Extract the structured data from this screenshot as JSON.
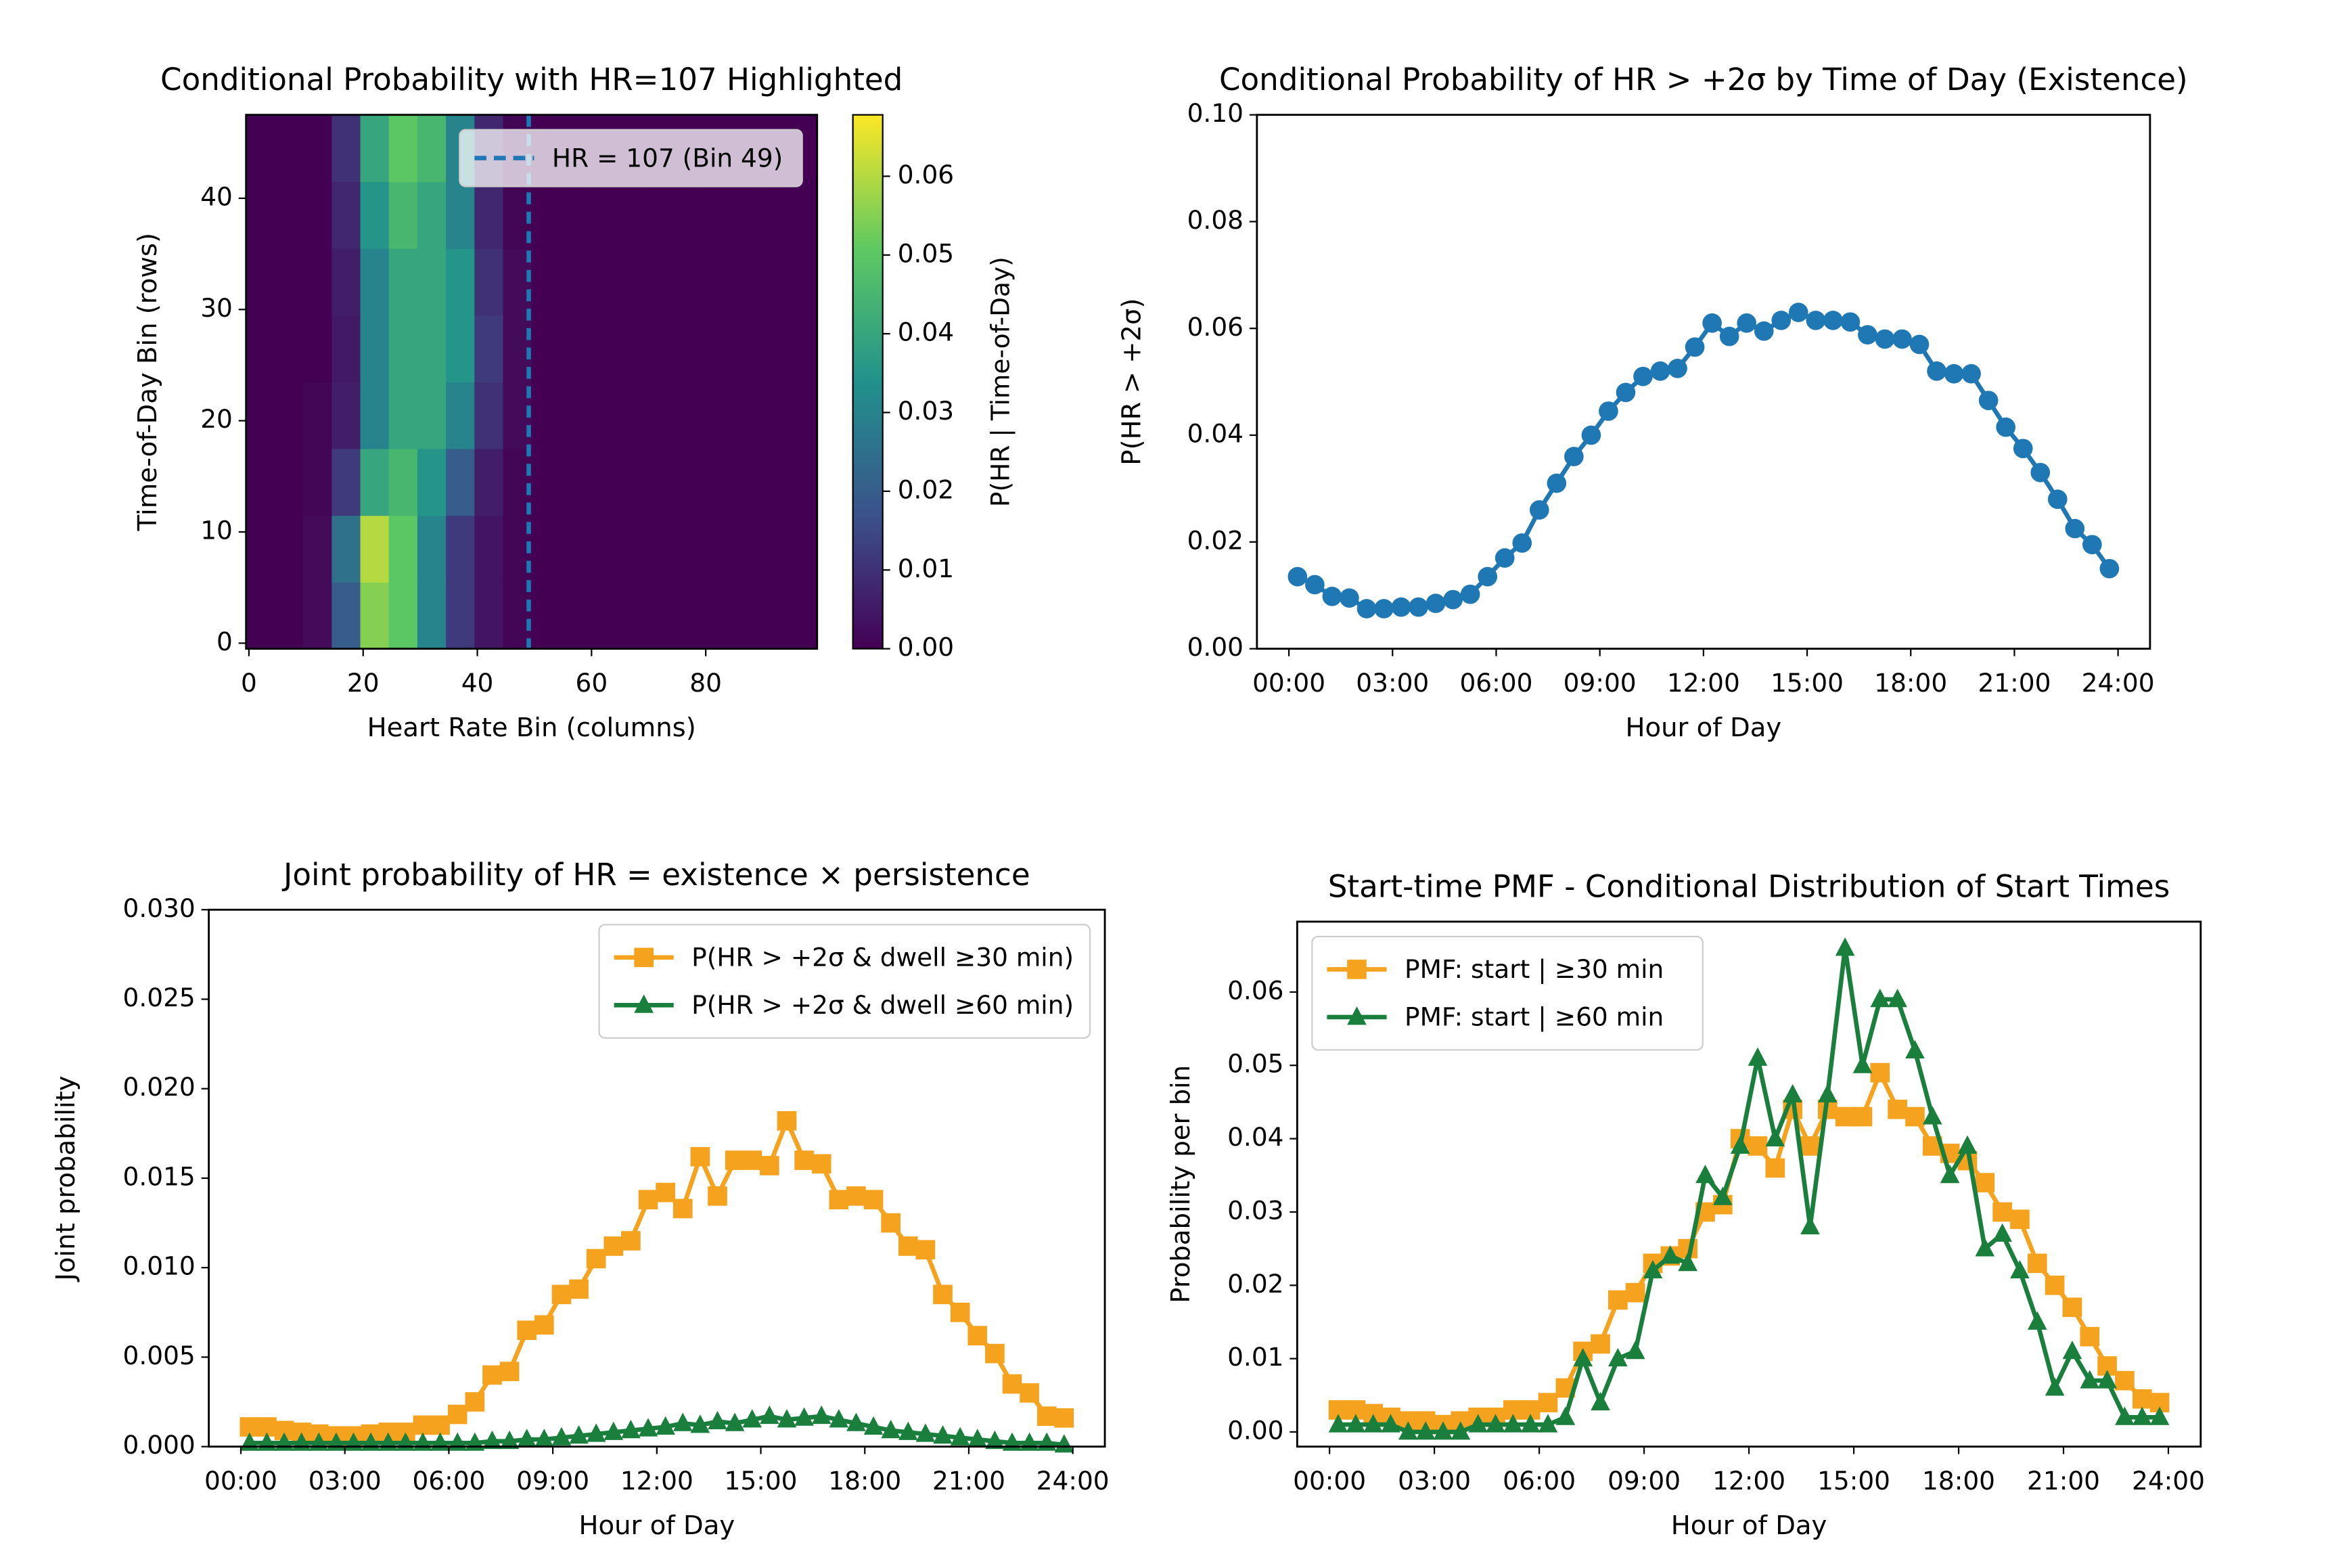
{
  "chart_data": [
    {
      "type": "heatmap",
      "title": "Conditional Probability with HR=107 Highlighted",
      "xlabel": "Heart Rate Bin (columns)",
      "ylabel": "Time-of-Day Bin (rows)",
      "xlim": [
        -0.5,
        99.5
      ],
      "ylim": [
        -0.5,
        47.5
      ],
      "xticks": [
        0,
        20,
        40,
        60,
        80
      ],
      "yticks": [
        0,
        10,
        20,
        30,
        40
      ],
      "colormap": "viridis",
      "clim": [
        0,
        0.0678
      ],
      "colorbar_label": "P(HR | Time-of-Day)",
      "cticks": [
        {
          "value": 0,
          "label": "0.00"
        },
        {
          "value": 0.01,
          "label": "0.01"
        },
        {
          "value": 0.02,
          "label": "0.02"
        },
        {
          "value": 0.03,
          "label": "0.03"
        },
        {
          "value": 0.04,
          "label": "0.04"
        },
        {
          "value": 0.05,
          "label": "0.05"
        },
        {
          "value": 0.06,
          "label": "0.06"
        }
      ],
      "vline": {
        "x": 49,
        "label": "HR = 107 (Bin 49)",
        "color": "#1f77b4"
      },
      "legend": "upper right",
      "z": [
        [
          0,
          0,
          0.002,
          0.02,
          0.055,
          0.05,
          0.03,
          0.012,
          0.004,
          0.001,
          0,
          0,
          0,
          0,
          0,
          0,
          0,
          0,
          0,
          0
        ],
        [
          0,
          0,
          0.002,
          0.025,
          0.06,
          0.05,
          0.03,
          0.012,
          0.004,
          0.001,
          0,
          0,
          0,
          0,
          0,
          0,
          0,
          0,
          0,
          0
        ],
        [
          0,
          0,
          0.001,
          0.012,
          0.04,
          0.045,
          0.035,
          0.02,
          0.006,
          0.001,
          0,
          0,
          0,
          0,
          0,
          0,
          0,
          0,
          0,
          0
        ],
        [
          0,
          0,
          0.001,
          0.006,
          0.03,
          0.04,
          0.04,
          0.03,
          0.01,
          0.002,
          0,
          0,
          0,
          0,
          0,
          0,
          0,
          0,
          0,
          0
        ],
        [
          0,
          0,
          0,
          0.005,
          0.03,
          0.04,
          0.04,
          0.035,
          0.012,
          0.002,
          0,
          0,
          0,
          0,
          0,
          0,
          0,
          0,
          0,
          0
        ],
        [
          0,
          0,
          0,
          0.006,
          0.03,
          0.04,
          0.04,
          0.035,
          0.01,
          0.002,
          0,
          0,
          0,
          0,
          0,
          0,
          0,
          0,
          0,
          0
        ],
        [
          0,
          0,
          0,
          0.008,
          0.035,
          0.045,
          0.04,
          0.03,
          0.008,
          0.001,
          0,
          0,
          0,
          0,
          0,
          0,
          0,
          0,
          0,
          0
        ],
        [
          0,
          0,
          0,
          0.01,
          0.04,
          0.05,
          0.045,
          0.03,
          0.008,
          0.001,
          0,
          0,
          0,
          0,
          0,
          0,
          0,
          0,
          0,
          0
        ]
      ]
    },
    {
      "type": "line",
      "title": "Conditional Probability of HR > +2σ by Time of Day (Existence)",
      "xlabel": "Hour of Day",
      "ylabel": "P(HR > +2σ)",
      "xlim": [
        -0.925,
        24.925
      ],
      "ylim": [
        0,
        0.1
      ],
      "xticks": [
        {
          "value": 0,
          "label": "00:00"
        },
        {
          "value": 3,
          "label": "03:00"
        },
        {
          "value": 6,
          "label": "06:00"
        },
        {
          "value": 9,
          "label": "09:00"
        },
        {
          "value": 12,
          "label": "12:00"
        },
        {
          "value": 15,
          "label": "15:00"
        },
        {
          "value": 18,
          "label": "18:00"
        },
        {
          "value": 21,
          "label": "21:00"
        },
        {
          "value": 24,
          "label": "24:00"
        }
      ],
      "yticks": [
        {
          "value": 0,
          "label": "0.00"
        },
        {
          "value": 0.02,
          "label": "0.02"
        },
        {
          "value": 0.04,
          "label": "0.04"
        },
        {
          "value": 0.06,
          "label": "0.06"
        },
        {
          "value": 0.08,
          "label": "0.08"
        },
        {
          "value": 0.1,
          "label": "0.10"
        }
      ],
      "x": [
        0.25,
        0.75,
        1.25,
        1.75,
        2.25,
        2.75,
        3.25,
        3.75,
        4.25,
        4.75,
        5.25,
        5.75,
        6.25,
        6.75,
        7.25,
        7.75,
        8.25,
        8.75,
        9.25,
        9.75,
        10.25,
        10.75,
        11.25,
        11.75,
        12.25,
        12.75,
        13.25,
        13.75,
        14.25,
        14.75,
        15.25,
        15.75,
        16.25,
        16.75,
        17.25,
        17.75,
        18.25,
        18.75,
        19.25,
        19.75,
        20.25,
        20.75,
        21.25,
        21.75,
        22.25,
        22.75,
        23.25,
        23.75
      ],
      "series": [
        {
          "color": "#1f77b4",
          "marker": "o",
          "values": [
            0.0135,
            0.012,
            0.0098,
            0.0095,
            0.0075,
            0.0075,
            0.0078,
            0.0078,
            0.0085,
            0.0092,
            0.0102,
            0.0135,
            0.017,
            0.0198,
            0.026,
            0.031,
            0.036,
            0.04,
            0.0445,
            0.048,
            0.051,
            0.052,
            0.0525,
            0.0565,
            0.061,
            0.0585,
            0.061,
            0.0595,
            0.0615,
            0.063,
            0.0615,
            0.0615,
            0.0612,
            0.0588,
            0.058,
            0.058,
            0.057,
            0.052,
            0.0515,
            0.0515,
            0.0465,
            0.0415,
            0.0375,
            0.033,
            0.028,
            0.0225,
            0.0195,
            0.015
          ]
        }
      ]
    },
    {
      "type": "line",
      "title": "Joint probability of HR = existence × persistence",
      "xlabel": "Hour of Day",
      "ylabel": "Joint probability",
      "legend": "upper right",
      "xlim": [
        -0.925,
        24.925
      ],
      "ylim": [
        0,
        0.03
      ],
      "xticks": [
        {
          "value": 0,
          "label": "00:00"
        },
        {
          "value": 3,
          "label": "03:00"
        },
        {
          "value": 6,
          "label": "06:00"
        },
        {
          "value": 9,
          "label": "09:00"
        },
        {
          "value": 12,
          "label": "12:00"
        },
        {
          "value": 15,
          "label": "15:00"
        },
        {
          "value": 18,
          "label": "18:00"
        },
        {
          "value": 21,
          "label": "21:00"
        },
        {
          "value": 24,
          "label": "24:00"
        }
      ],
      "yticks": [
        {
          "value": 0,
          "label": "0.000"
        },
        {
          "value": 0.005,
          "label": "0.005"
        },
        {
          "value": 0.01,
          "label": "0.010"
        },
        {
          "value": 0.015,
          "label": "0.015"
        },
        {
          "value": 0.02,
          "label": "0.020"
        },
        {
          "value": 0.025,
          "label": "0.025"
        },
        {
          "value": 0.03,
          "label": "0.030"
        }
      ],
      "x": [
        0.25,
        0.75,
        1.25,
        1.75,
        2.25,
        2.75,
        3.25,
        3.75,
        4.25,
        4.75,
        5.25,
        5.75,
        6.25,
        6.75,
        7.25,
        7.75,
        8.25,
        8.75,
        9.25,
        9.75,
        10.25,
        10.75,
        11.25,
        11.75,
        12.25,
        12.75,
        13.25,
        13.75,
        14.25,
        14.75,
        15.25,
        15.75,
        16.25,
        16.75,
        17.25,
        17.75,
        18.25,
        18.75,
        19.25,
        19.75,
        20.25,
        20.75,
        21.25,
        21.75,
        22.25,
        22.75,
        23.25,
        23.75
      ],
      "series": [
        {
          "name": "P(HR > +2σ & dwell ≥30 min)",
          "color": "#f5a31f",
          "marker": "s",
          "values": [
            0.0011,
            0.0011,
            0.0009,
            0.0008,
            0.0007,
            0.0006,
            0.0006,
            0.0007,
            0.0008,
            0.0008,
            0.0012,
            0.0012,
            0.0018,
            0.0025,
            0.004,
            0.0042,
            0.0065,
            0.0068,
            0.0085,
            0.0088,
            0.0105,
            0.0112,
            0.0115,
            0.0138,
            0.0142,
            0.0133,
            0.0162,
            0.014,
            0.016,
            0.016,
            0.0157,
            0.0182,
            0.016,
            0.0158,
            0.0138,
            0.014,
            0.0138,
            0.0125,
            0.0112,
            0.011,
            0.0085,
            0.0075,
            0.0062,
            0.0052,
            0.0035,
            0.003,
            0.0017,
            0.0016
          ]
        },
        {
          "name": "P(HR > +2σ & dwell ≥60 min)",
          "color": "#1a7f3c",
          "marker": "^",
          "values": [
            0.0002,
            0.0002,
            0.0002,
            0.0002,
            0.0002,
            0.0002,
            0.0002,
            0.0002,
            0.0002,
            0.0002,
            0.0002,
            0.0002,
            0.0002,
            0.0002,
            0.0003,
            0.0003,
            0.0004,
            0.0004,
            0.0005,
            0.0006,
            0.0007,
            0.0008,
            0.0009,
            0.001,
            0.0011,
            0.0013,
            0.0012,
            0.0014,
            0.0013,
            0.0015,
            0.0017,
            0.0015,
            0.0016,
            0.0017,
            0.0015,
            0.0013,
            0.0011,
            0.0009,
            0.0008,
            0.0007,
            0.0006,
            0.0005,
            0.0004,
            0.0003,
            0.0002,
            0.0002,
            0.0002,
            0.0001
          ]
        }
      ]
    },
    {
      "type": "line",
      "title": "Start-time PMF - Conditional Distribution of Start Times",
      "xlabel": "Hour of Day",
      "ylabel": "Probability per bin",
      "legend": "upper left",
      "xlim": [
        -0.925,
        24.925
      ],
      "ylim": [
        -0.002,
        0.0696
      ],
      "xticks": [
        {
          "value": 0,
          "label": "00:00"
        },
        {
          "value": 3,
          "label": "03:00"
        },
        {
          "value": 6,
          "label": "06:00"
        },
        {
          "value": 9,
          "label": "09:00"
        },
        {
          "value": 12,
          "label": "12:00"
        },
        {
          "value": 15,
          "label": "15:00"
        },
        {
          "value": 18,
          "label": "18:00"
        },
        {
          "value": 21,
          "label": "21:00"
        },
        {
          "value": 24,
          "label": "24:00"
        }
      ],
      "yticks": [
        {
          "value": 0,
          "label": "0.00"
        },
        {
          "value": 0.01,
          "label": "0.01"
        },
        {
          "value": 0.02,
          "label": "0.02"
        },
        {
          "value": 0.03,
          "label": "0.03"
        },
        {
          "value": 0.04,
          "label": "0.04"
        },
        {
          "value": 0.05,
          "label": "0.05"
        },
        {
          "value": 0.06,
          "label": "0.06"
        }
      ],
      "x": [
        0.25,
        0.75,
        1.25,
        1.75,
        2.25,
        2.75,
        3.25,
        3.75,
        4.25,
        4.75,
        5.25,
        5.75,
        6.25,
        6.75,
        7.25,
        7.75,
        8.25,
        8.75,
        9.25,
        9.75,
        10.25,
        10.75,
        11.25,
        11.75,
        12.25,
        12.75,
        13.25,
        13.75,
        14.25,
        14.75,
        15.25,
        15.75,
        16.25,
        16.75,
        17.25,
        17.75,
        18.25,
        18.75,
        19.25,
        19.75,
        20.25,
        20.75,
        21.25,
        21.75,
        22.25,
        22.75,
        23.25,
        23.75
      ],
      "series": [
        {
          "name": "PMF: start | ≥30 min",
          "color": "#f5a31f",
          "marker": "s",
          "values": [
            0.003,
            0.003,
            0.0025,
            0.002,
            0.0015,
            0.0015,
            0.001,
            0.0015,
            0.002,
            0.002,
            0.003,
            0.003,
            0.004,
            0.006,
            0.011,
            0.012,
            0.018,
            0.019,
            0.023,
            0.024,
            0.025,
            0.03,
            0.031,
            0.04,
            0.039,
            0.036,
            0.044,
            0.039,
            0.044,
            0.043,
            0.043,
            0.049,
            0.044,
            0.043,
            0.039,
            0.038,
            0.037,
            0.034,
            0.03,
            0.029,
            0.023,
            0.02,
            0.017,
            0.013,
            0.009,
            0.007,
            0.0045,
            0.004
          ]
        },
        {
          "name": "PMF: start | ≥60 min",
          "color": "#1a7f3c",
          "marker": "^",
          "values": [
            0.001,
            0.001,
            0.001,
            0.001,
            0,
            0,
            0,
            0,
            0.001,
            0.001,
            0.001,
            0.001,
            0.001,
            0.002,
            0.01,
            0.004,
            0.01,
            0.011,
            0.022,
            0.024,
            0.023,
            0.035,
            0.032,
            0.039,
            0.051,
            0.04,
            0.046,
            0.028,
            0.046,
            0.066,
            0.05,
            0.059,
            0.059,
            0.052,
            0.043,
            0.035,
            0.039,
            0.025,
            0.027,
            0.022,
            0.015,
            0.006,
            0.011,
            0.007,
            0.007,
            0.002,
            0.002,
            0.002
          ]
        }
      ]
    }
  ]
}
